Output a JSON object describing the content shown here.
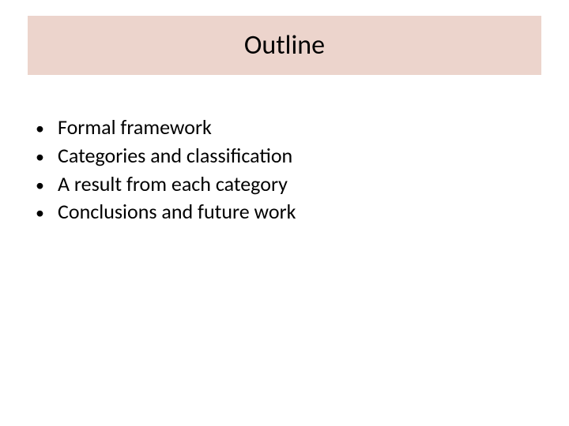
{
  "slide": {
    "title": "Outline",
    "title_bar_color": "#ecd4cc",
    "title_fontsize": 34,
    "title_color": "#000000",
    "background_color": "#ffffff",
    "bullets": [
      "Formal framework",
      "Categories and classification",
      "A result from each category",
      "Conclusions and future work"
    ],
    "bullet_fontsize": 26,
    "bullet_color": "#000000",
    "bullet_marker": "•"
  }
}
